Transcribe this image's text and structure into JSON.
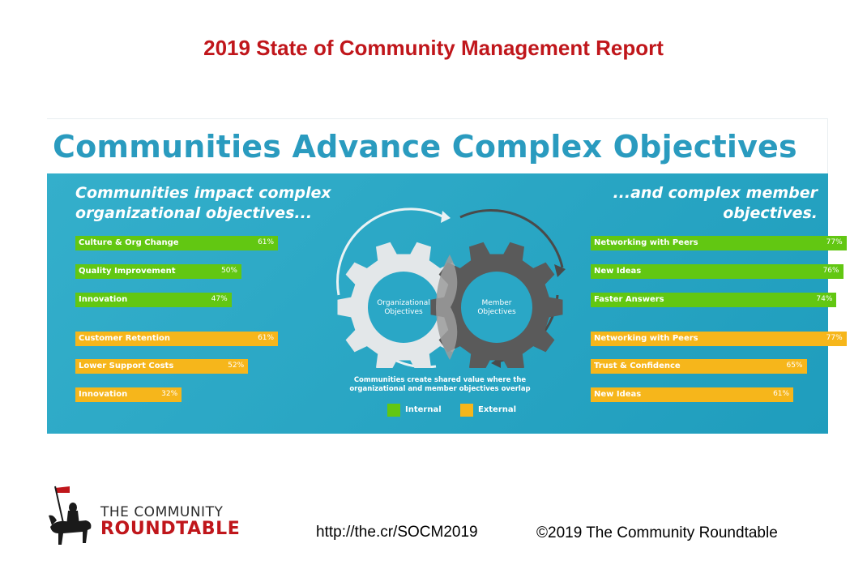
{
  "report_title": "2019 State of Community Management Report",
  "slide_title": "Communities Advance Complex Objectives",
  "left_heading": [
    "Communities impact complex",
    "organizational objectives..."
  ],
  "right_heading": [
    "...and complex member",
    "objectives."
  ],
  "gear_labels": {
    "left": [
      "Organizational",
      "Objectives"
    ],
    "right": [
      "Member",
      "Objectives"
    ]
  },
  "caption": [
    "Communities create shared value where the",
    "organizational and member objectives overlap"
  ],
  "legend": [
    {
      "label": "Internal",
      "color": "#62c712"
    },
    {
      "label": "External",
      "color": "#f6b61b"
    }
  ],
  "chart_data": [
    {
      "type": "bar",
      "group": "organizational",
      "series": [
        {
          "name": "Internal",
          "categories": [
            "Culture & Org Change",
            "Quality Improvement",
            "Innovation"
          ],
          "values": [
            61,
            50,
            47
          ],
          "labels": [
            "61%",
            "50%",
            "47%"
          ]
        },
        {
          "name": "External",
          "categories": [
            "Customer Retention",
            "Lower Support Costs",
            "Innovation"
          ],
          "values": [
            61,
            52,
            32
          ],
          "labels": [
            "61%",
            "52%",
            "32%"
          ]
        }
      ],
      "xlim": [
        0,
        100
      ]
    },
    {
      "type": "bar",
      "group": "member",
      "series": [
        {
          "name": "Internal",
          "categories": [
            "Networking with Peers",
            "New Ideas",
            "Faster Answers"
          ],
          "values": [
            77,
            76,
            74
          ],
          "labels": [
            "77%",
            "76%",
            "74%"
          ]
        },
        {
          "name": "External",
          "categories": [
            "Networking with Peers",
            "Trust & Confidence",
            "New Ideas"
          ],
          "values": [
            77,
            65,
            61
          ],
          "labels": [
            "77%",
            "65%",
            "61%"
          ]
        }
      ],
      "xlim": [
        0,
        100
      ]
    }
  ],
  "logo": {
    "line1": "THE COMMUNITY",
    "line2": "ROUNDTABLE"
  },
  "footer": {
    "url": "http://the.cr/SOCM2019",
    "copyright": "©2019 The Community Roundtable"
  }
}
